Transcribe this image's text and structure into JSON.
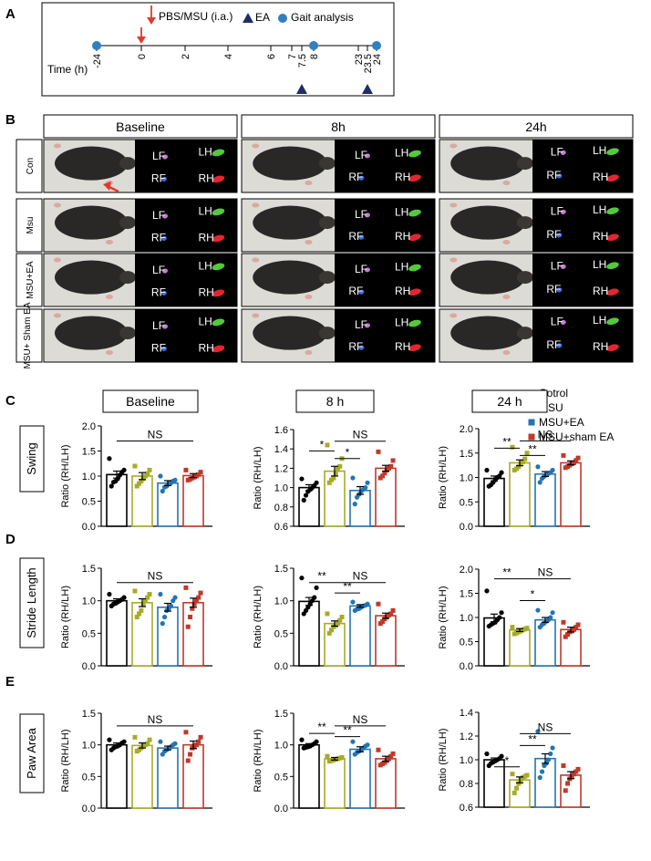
{
  "panels": {
    "A": "A",
    "B": "B",
    "C": "C",
    "D": "D",
    "E": "E"
  },
  "timeline": {
    "legend": {
      "injection": "PBS/MSU (i.a.)",
      "ea": "EA",
      "gait": "Gait analysis"
    },
    "axis_label": "Time (h)",
    "ticks": [
      "-24",
      "0",
      "2",
      "4",
      "6",
      "7",
      "7.5",
      "8",
      "23",
      "23.5",
      "24"
    ],
    "tick_values": [
      -24,
      0,
      2,
      4,
      6,
      7,
      7.5,
      8,
      23,
      23.5,
      24
    ],
    "gait_times": [
      -24,
      8,
      24
    ],
    "injection_time": 0,
    "ea_times": [
      7.5,
      23.5
    ],
    "colors": {
      "injection": "#e23a2f",
      "ea": "#1f2d6b",
      "gait": "#2f7fc1"
    }
  },
  "imaging": {
    "columns": [
      "Baseline",
      "8h",
      "24h"
    ],
    "rows": [
      "Con",
      "Msu",
      "MSU+EA",
      "MSU+ Sham EA"
    ],
    "paw_labels": {
      "lf": "LF",
      "lh": "LH",
      "rf": "RF",
      "rh": "RH"
    },
    "paw_colors": {
      "lf": "#c77ad6",
      "lh": "#53c93e",
      "rf": "#3a6de0",
      "rh": "#e1262d"
    }
  },
  "legend": {
    "groups": [
      "Cotrol",
      "MSU",
      "MSU+EA",
      "MSU+sham EA"
    ],
    "colors": [
      "#000000",
      "#a6ab2a",
      "#2474b5",
      "#c0392b"
    ]
  },
  "rows": [
    {
      "label": "Swing"
    },
    {
      "label": "Stride Length"
    },
    {
      "label": "Paw Area"
    }
  ],
  "chart_data": [
    {
      "type": "bar",
      "panel": "C",
      "title": "Baseline",
      "row": "Swing",
      "ylabel": "Ratio (RH/LH)",
      "ylim": [
        0,
        2.0
      ],
      "yticks": [
        "0.0",
        "0.5",
        "1.0",
        "1.5",
        "2.0"
      ],
      "categories": [
        "Cotrol",
        "MSU",
        "MSU+EA",
        "MSU+sham EA"
      ],
      "values": [
        1.03,
        1.0,
        0.86,
        1.01
      ],
      "errors": [
        0.07,
        0.07,
        0.05,
        0.04
      ],
      "points": [
        [
          1.35,
          1.12,
          1.08,
          1.02,
          0.95,
          0.9,
          0.88,
          0.8
        ],
        [
          1.2,
          1.12,
          1.05,
          1.0,
          0.95,
          0.9,
          0.85,
          0.8
        ],
        [
          1.0,
          0.92,
          0.9,
          0.86,
          0.85,
          0.8,
          0.78,
          0.7
        ],
        [
          1.12,
          1.08,
          1.03,
          1.0,
          0.98,
          0.96,
          0.94,
          0.92
        ]
      ],
      "annotations": [
        {
          "text": "NS",
          "from": 0,
          "to": 3,
          "y": 1.7
        }
      ]
    },
    {
      "type": "bar",
      "panel": "C",
      "title": "8 h",
      "row": "Swing",
      "ylabel": "Ratio (RH/LH)",
      "ylim": [
        0.6,
        1.6
      ],
      "yticks": [
        "0.6",
        "0.8",
        "1.0",
        "1.2",
        "1.4",
        "1.6"
      ],
      "categories": [
        "Cotrol",
        "MSU",
        "MSU+EA",
        "MSU+sham EA"
      ],
      "values": [
        1.0,
        1.17,
        0.97,
        1.2
      ],
      "errors": [
        0.03,
        0.05,
        0.04,
        0.03
      ],
      "points": [
        [
          1.09,
          1.05,
          1.02,
          1.0,
          0.98,
          0.96,
          0.92,
          0.87
        ],
        [
          1.44,
          1.3,
          1.22,
          1.2,
          1.15,
          1.1,
          1.08,
          1.05
        ],
        [
          1.1,
          1.05,
          1.0,
          0.98,
          0.96,
          0.93,
          0.9,
          0.83
        ],
        [
          1.37,
          1.28,
          1.22,
          1.2,
          1.18,
          1.15,
          1.12,
          1.1
        ]
      ],
      "annotations": [
        {
          "text": "*",
          "from": 0,
          "to": 1,
          "y": 1.38
        },
        {
          "text": "*",
          "from": 1,
          "to": 2,
          "y": 1.3
        },
        {
          "text": "NS",
          "from": 1,
          "to": 3,
          "y": 1.48
        }
      ]
    },
    {
      "type": "bar",
      "panel": "C",
      "title": "24 h",
      "row": "Swing",
      "ylabel": "Ratio (RH/LH)",
      "ylim": [
        0.0,
        2.0
      ],
      "yticks": [
        "0.0",
        "0.5",
        "1.0",
        "1.5",
        "2.0"
      ],
      "categories": [
        "Cotrol",
        "MSU",
        "MSU+EA",
        "MSU+sham EA"
      ],
      "values": [
        0.98,
        1.3,
        1.07,
        1.3
      ],
      "errors": [
        0.05,
        0.06,
        0.05,
        0.04
      ],
      "points": [
        [
          1.15,
          1.1,
          1.03,
          1.0,
          0.95,
          0.9,
          0.85,
          0.82
        ],
        [
          1.62,
          1.5,
          1.38,
          1.32,
          1.28,
          1.22,
          1.18,
          1.15
        ],
        [
          1.22,
          1.15,
          1.1,
          1.08,
          1.05,
          1.02,
          0.98,
          0.9
        ],
        [
          1.45,
          1.4,
          1.35,
          1.3,
          1.28,
          1.25,
          1.22,
          1.2
        ]
      ],
      "annotations": [
        {
          "text": "**",
          "from": 0,
          "to": 1,
          "y": 1.6
        },
        {
          "text": "**",
          "from": 1,
          "to": 2,
          "y": 1.45
        },
        {
          "text": "NS",
          "from": 1,
          "to": 3,
          "y": 1.75
        }
      ]
    },
    {
      "type": "bar",
      "panel": "D",
      "title": "",
      "row": "Stride Length",
      "ylabel": "Ratio (RH/LH)",
      "ylim": [
        0.0,
        1.5
      ],
      "yticks": [
        "0.0",
        "0.5",
        "1.0",
        "1.5"
      ],
      "categories": [
        "Cotrol",
        "MSU",
        "MSU+EA",
        "MSU+sham EA"
      ],
      "values": [
        1.0,
        0.97,
        0.9,
        0.97
      ],
      "errors": [
        0.03,
        0.06,
        0.06,
        0.07
      ],
      "points": [
        [
          1.1,
          1.05,
          1.02,
          1.0,
          0.98,
          0.96,
          0.95,
          0.92
        ],
        [
          1.15,
          1.1,
          1.05,
          1.0,
          0.95,
          0.85,
          0.8,
          0.75
        ],
        [
          1.1,
          1.05,
          1.0,
          0.92,
          0.88,
          0.85,
          0.75,
          0.65
        ],
        [
          1.2,
          1.12,
          1.05,
          1.0,
          0.95,
          0.88,
          0.75,
          0.6
        ]
      ],
      "annotations": [
        {
          "text": "NS",
          "from": 0,
          "to": 3,
          "y": 1.28
        }
      ]
    },
    {
      "type": "bar",
      "panel": "D",
      "title": "",
      "row": "Stride Length",
      "ylabel": "Ratio (RH/LH)",
      "ylim": [
        0.0,
        1.5
      ],
      "yticks": [
        "0.0",
        "0.5",
        "1.0",
        "1.5"
      ],
      "categories": [
        "Cotrol",
        "MSU",
        "MSU+EA",
        "MSU+sham EA"
      ],
      "values": [
        0.99,
        0.65,
        0.92,
        0.77
      ],
      "errors": [
        0.06,
        0.04,
        0.02,
        0.04
      ],
      "points": [
        [
          1.35,
          1.2,
          1.05,
          1.0,
          0.95,
          0.9,
          0.85,
          0.8
        ],
        [
          0.8,
          0.75,
          0.7,
          0.65,
          0.62,
          0.6,
          0.55,
          0.5
        ],
        [
          0.98,
          0.95,
          0.93,
          0.92,
          0.9,
          0.88,
          0.87,
          0.85
        ],
        [
          0.95,
          0.85,
          0.8,
          0.78,
          0.75,
          0.72,
          0.68,
          0.65
        ]
      ],
      "annotations": [
        {
          "text": "**",
          "from": 0,
          "to": 1,
          "y": 1.28
        },
        {
          "text": "**",
          "from": 1,
          "to": 2,
          "y": 1.12
        },
        {
          "text": "NS",
          "from": 1,
          "to": 3,
          "y": 1.28
        }
      ]
    },
    {
      "type": "bar",
      "panel": "D",
      "title": "",
      "row": "Stride Length",
      "ylabel": "Ratio (RH/LH)",
      "ylim": [
        0.0,
        2.0
      ],
      "yticks": [
        "0.0",
        "0.5",
        "1.0",
        "1.5",
        "2.0"
      ],
      "categories": [
        "Cotrol",
        "MSU",
        "MSU+EA",
        "MSU+sham EA"
      ],
      "values": [
        0.99,
        0.74,
        0.95,
        0.75
      ],
      "errors": [
        0.08,
        0.03,
        0.05,
        0.05
      ],
      "points": [
        [
          1.55,
          1.1,
          1.0,
          0.95,
          0.9,
          0.88,
          0.85,
          0.82
        ],
        [
          0.8,
          0.78,
          0.76,
          0.74,
          0.72,
          0.7,
          0.68,
          0.66
        ],
        [
          1.15,
          1.1,
          1.0,
          0.95,
          0.92,
          0.88,
          0.85,
          0.8
        ],
        [
          0.9,
          0.85,
          0.8,
          0.75,
          0.72,
          0.7,
          0.65,
          0.6
        ]
      ],
      "annotations": [
        {
          "text": "**",
          "from": 0,
          "to": 1,
          "y": 1.8
        },
        {
          "text": "*",
          "from": 1,
          "to": 2,
          "y": 1.35
        },
        {
          "text": "NS",
          "from": 1,
          "to": 3,
          "y": 1.8
        }
      ]
    },
    {
      "type": "bar",
      "panel": "E",
      "title": "",
      "row": "Paw Area",
      "ylabel": "Ratio (RH/LH)",
      "ylim": [
        0.0,
        1.5
      ],
      "yticks": [
        "0.0",
        "0.5",
        "1.0",
        "1.5"
      ],
      "categories": [
        "Cotrol",
        "MSU",
        "MSU+EA",
        "MSU+sham EA"
      ],
      "values": [
        1.0,
        0.99,
        0.95,
        1.0
      ],
      "errors": [
        0.03,
        0.04,
        0.03,
        0.06
      ],
      "points": [
        [
          1.08,
          1.05,
          1.03,
          1.0,
          0.98,
          0.97,
          0.95,
          0.92
        ],
        [
          1.12,
          1.08,
          1.02,
          1.0,
          0.98,
          0.95,
          0.92,
          0.9
        ],
        [
          1.05,
          1.02,
          1.0,
          0.97,
          0.95,
          0.92,
          0.9,
          0.85
        ],
        [
          1.2,
          1.12,
          1.05,
          1.0,
          0.98,
          0.95,
          0.85,
          0.75
        ]
      ],
      "annotations": [
        {
          "text": "NS",
          "from": 0,
          "to": 3,
          "y": 1.3
        }
      ]
    },
    {
      "type": "bar",
      "panel": "E",
      "title": "",
      "row": "Paw Area",
      "ylabel": "Ratio (RH/LH)",
      "ylim": [
        0.0,
        1.5
      ],
      "yticks": [
        "0.0",
        "0.5",
        "1.0",
        "1.5"
      ],
      "categories": [
        "Cotrol",
        "MSU",
        "MSU+EA",
        "MSU+sham EA"
      ],
      "values": [
        1.0,
        0.78,
        0.93,
        0.78
      ],
      "errors": [
        0.02,
        0.02,
        0.04,
        0.04
      ],
      "points": [
        [
          1.08,
          1.05,
          1.02,
          1.0,
          0.98,
          0.97,
          0.96,
          0.95
        ],
        [
          0.82,
          0.8,
          0.79,
          0.78,
          0.77,
          0.76,
          0.75,
          0.74
        ],
        [
          1.05,
          1.0,
          0.98,
          0.95,
          0.92,
          0.9,
          0.88,
          0.85
        ],
        [
          0.92,
          0.86,
          0.82,
          0.78,
          0.75,
          0.72,
          0.7,
          0.68
        ]
      ],
      "annotations": [
        {
          "text": "**",
          "from": 0,
          "to": 1,
          "y": 1.18
        },
        {
          "text": "**",
          "from": 1,
          "to": 2,
          "y": 1.13
        },
        {
          "text": "NS",
          "from": 1,
          "to": 3,
          "y": 1.3
        }
      ]
    },
    {
      "type": "bar",
      "panel": "E",
      "title": "",
      "row": "Paw Area",
      "ylabel": "Ratio (RH/LH)",
      "ylim": [
        0.6,
        1.4
      ],
      "yticks": [
        "0.6",
        "0.8",
        "1.0",
        "1.2",
        "1.4"
      ],
      "categories": [
        "Cotrol",
        "MSU",
        "MSU+EA",
        "MSU+sham EA"
      ],
      "values": [
        1.0,
        0.83,
        1.01,
        0.87
      ],
      "errors": [
        0.015,
        0.025,
        0.04,
        0.03
      ],
      "points": [
        [
          1.05,
          1.03,
          1.01,
          1.0,
          0.99,
          0.98,
          0.97,
          0.95
        ],
        [
          0.88,
          0.87,
          0.86,
          0.85,
          0.83,
          0.8,
          0.76,
          0.72
        ],
        [
          1.24,
          1.1,
          1.05,
          1.0,
          0.97,
          0.95,
          0.9,
          0.85
        ],
        [
          0.95,
          0.92,
          0.9,
          0.88,
          0.86,
          0.84,
          0.8,
          0.74
        ]
      ],
      "annotations": [
        {
          "text": "*",
          "from": 0,
          "to": 1,
          "y": 0.94
        },
        {
          "text": "**",
          "from": 1,
          "to": 2,
          "y": 1.12
        },
        {
          "text": "NS",
          "from": 1,
          "to": 3,
          "y": 1.22
        }
      ]
    }
  ]
}
